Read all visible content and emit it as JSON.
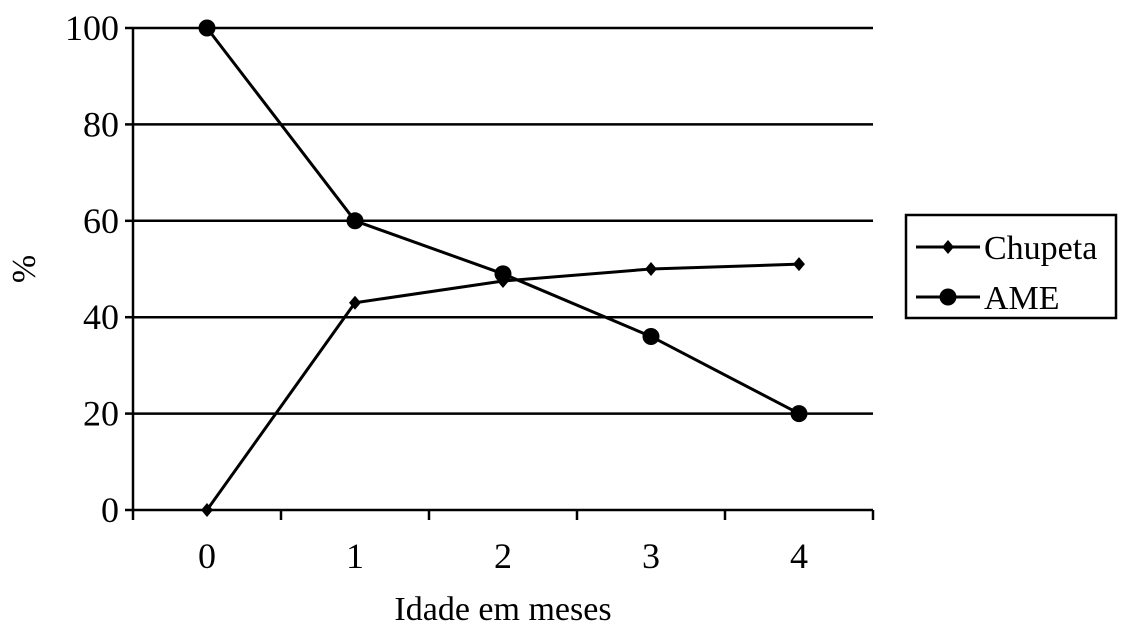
{
  "chart_data": {
    "type": "line",
    "title": "",
    "xlabel": "Idade em  meses",
    "ylabel": "%",
    "x": [
      0,
      1,
      2,
      3,
      4
    ],
    "x_tick_labels": [
      "0",
      "1",
      "2",
      "3",
      "4"
    ],
    "ylim": [
      0,
      100
    ],
    "y_ticks": [
      0,
      20,
      40,
      60,
      80,
      100
    ],
    "y_tick_labels": [
      "0",
      "20",
      "40",
      "60",
      "80",
      "100"
    ],
    "grid": "horizontal",
    "legend_position": "right",
    "series": [
      {
        "name": "Chupeta",
        "marker": "diamond",
        "color": "#000000",
        "values": [
          0,
          43,
          47.5,
          50,
          51
        ]
      },
      {
        "name": "AME",
        "marker": "circle",
        "color": "#000000",
        "values": [
          100,
          60,
          49,
          36,
          20
        ]
      }
    ]
  }
}
